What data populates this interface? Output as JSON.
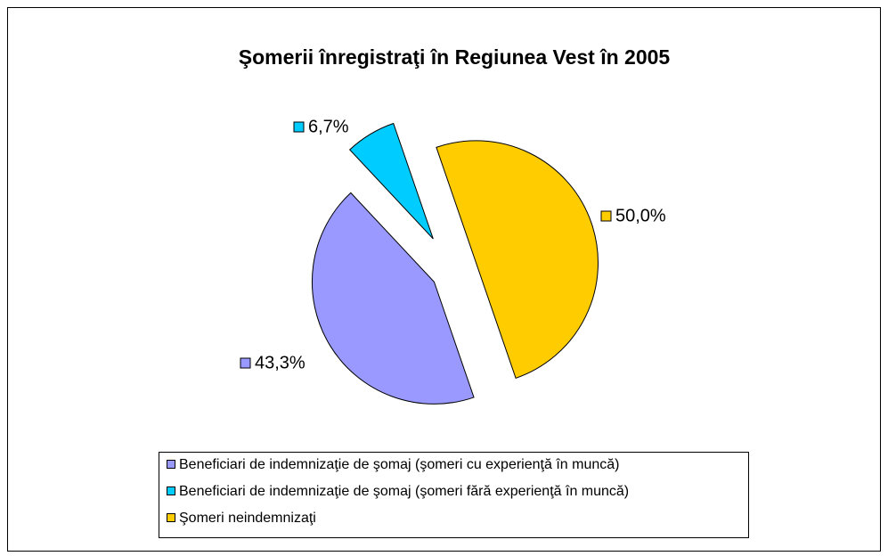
{
  "chart_data": {
    "type": "pie",
    "title": "Şomerii înregistraţi în Regiunea Vest în 2005",
    "categories": [
      "Beneficiari de indemnizaţie de şomaj (şomeri cu experienţă în muncă)",
      "Beneficiari de indemnizaţie de şomaj (şomeri fără experienţă în muncă)",
      "Şomeri neindemnizaţi"
    ],
    "values": [
      43.3,
      6.7,
      50.0
    ],
    "value_labels": [
      "43,3%",
      "6,7%",
      "50,0%"
    ],
    "colors": [
      "#9999ff",
      "#00ccff",
      "#ffcc00"
    ]
  }
}
